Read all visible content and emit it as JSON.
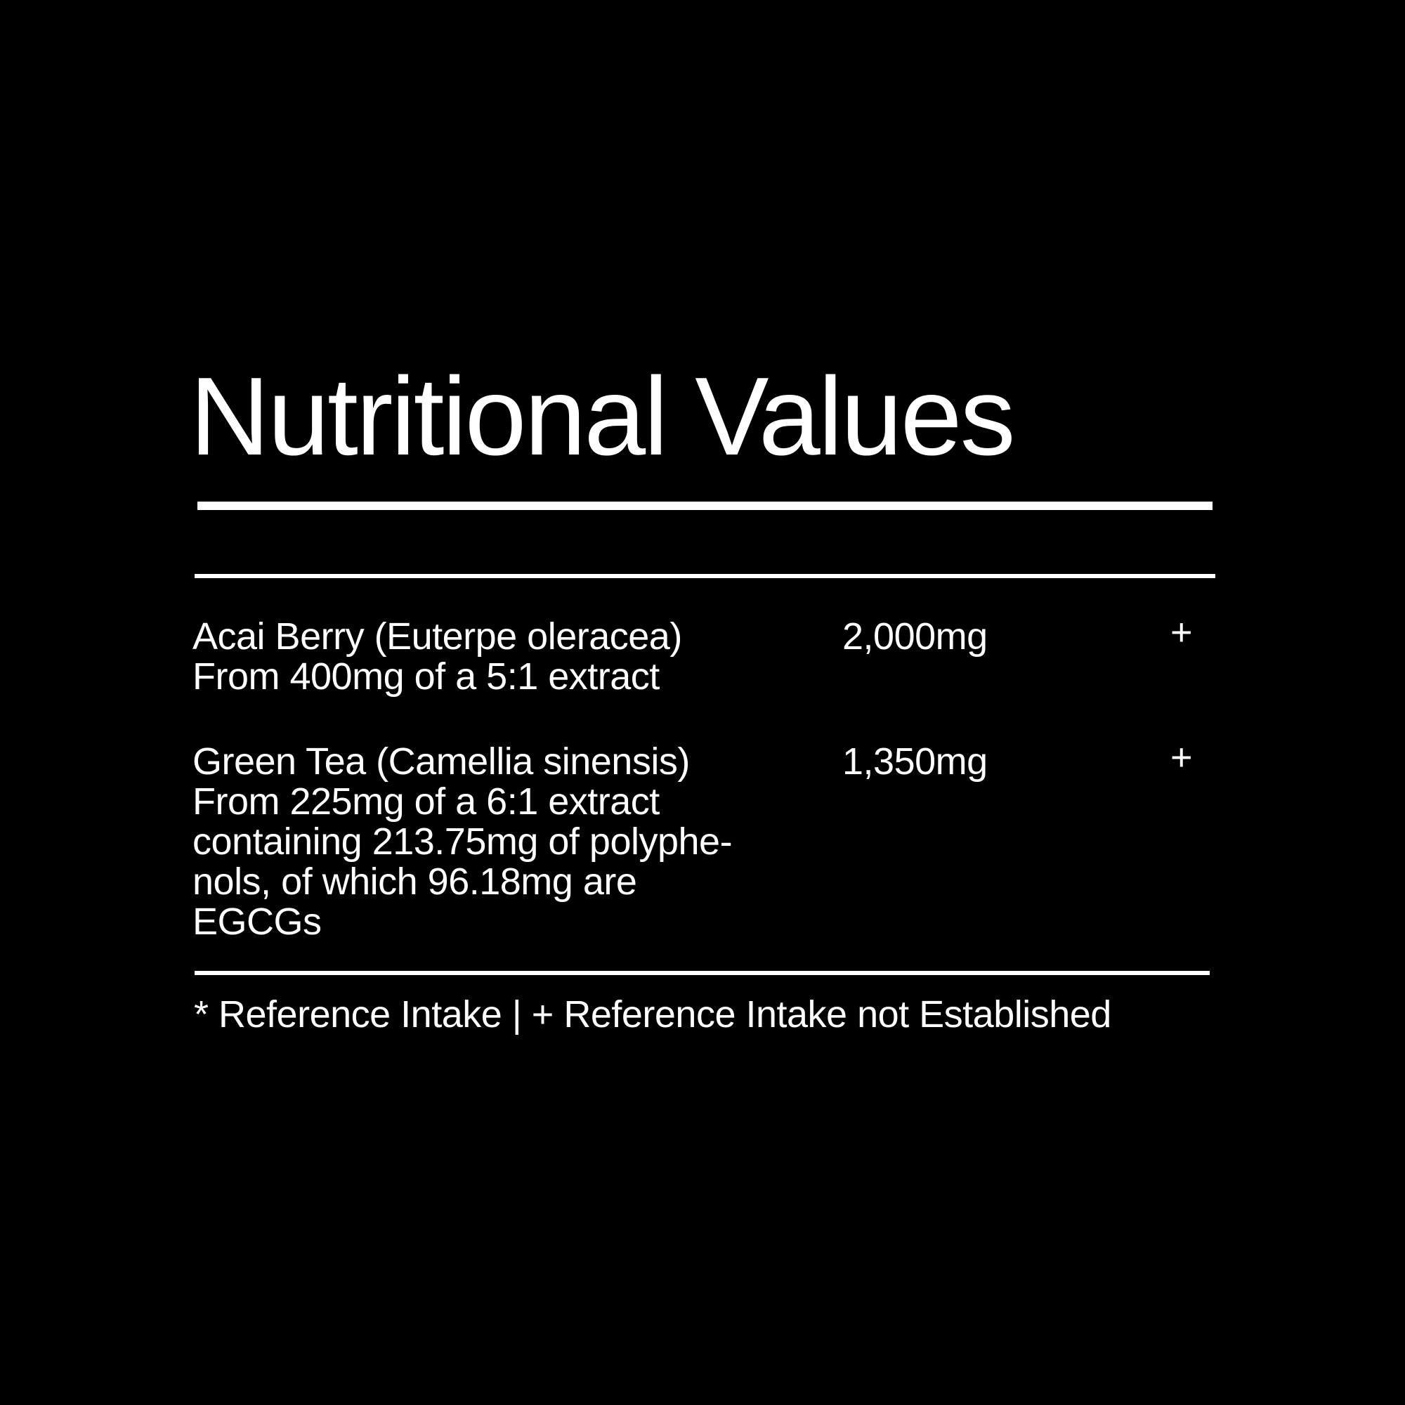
{
  "title": "Nutritional Values",
  "rows": [
    {
      "name": "Acai Berry (Euterpe oleracea)",
      "detail": "From 400mg of a 5:1 extract",
      "amount": "2,000mg",
      "ri": "+"
    },
    {
      "name": "Green Tea (Camellia sinensis)",
      "detail": "From 225mg of a 6:1 extract\ncontaining 213.75mg of polyphe-\nnols, of which 96.18mg are\nEGCGs",
      "amount": "1,350mg",
      "ri": "+"
    }
  ],
  "footer": "* Reference Intake | + Reference Intake not Established"
}
